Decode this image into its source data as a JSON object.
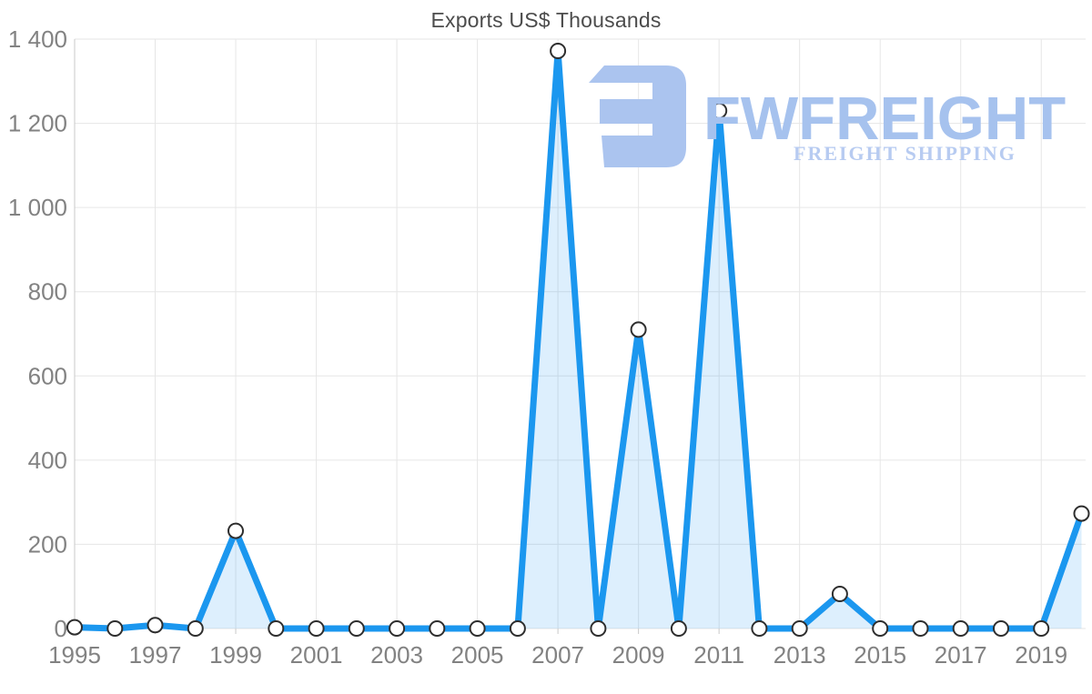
{
  "title": "Exports US$ Thousands",
  "watermark": {
    "brand": "FWFREIGHT",
    "tagline": "FREIGHT SHIPPING",
    "logo_color": "#abc4ef",
    "brand_color": "#a6c2ee",
    "tagline_color": "#b7cbf1"
  },
  "colors": {
    "line": "#1b97ef",
    "area_fill": "rgba(30,150,240,0.15)",
    "marker_fill": "#ffffff",
    "marker_stroke": "#2e2e2e",
    "grid": "#e6e6e6",
    "axis": "#c9c9c9",
    "tick_text": "#828282",
    "title_text": "#4c4c4c"
  },
  "chart_data": {
    "type": "area",
    "title": "Exports US$ Thousands",
    "xlabel": "",
    "ylabel": "",
    "x": [
      1995,
      1996,
      1997,
      1998,
      1999,
      2000,
      2001,
      2002,
      2003,
      2004,
      2005,
      2006,
      2007,
      2008,
      2009,
      2010,
      2011,
      2012,
      2013,
      2014,
      2015,
      2016,
      2017,
      2018,
      2019,
      2020
    ],
    "values": [
      3,
      0,
      8,
      0,
      232,
      0,
      0,
      0,
      0,
      0,
      0,
      0,
      1372,
      0,
      710,
      0,
      1230,
      0,
      0,
      82,
      0,
      0,
      0,
      0,
      0,
      273
    ],
    "series_name": "Exports US$ Thousands",
    "ylim": [
      0,
      1400
    ],
    "ytick_step": 200,
    "yticks": [
      0,
      200,
      400,
      600,
      800,
      1000,
      1200,
      1400
    ],
    "ytick_labels": [
      "0",
      "200",
      "400",
      "600",
      "800",
      "1 000",
      "1 200",
      "1 400"
    ],
    "xticks": [
      1995,
      1997,
      1999,
      2001,
      2003,
      2005,
      2007,
      2009,
      2011,
      2013,
      2015,
      2017,
      2019
    ],
    "grid": true,
    "legend": "none",
    "marker": "circle"
  }
}
